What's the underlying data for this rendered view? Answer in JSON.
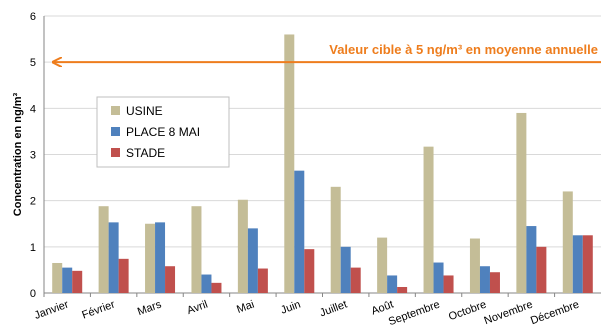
{
  "chart_data": {
    "type": "bar",
    "title": "",
    "xlabel": "",
    "ylabel": "Concentration en ng/m³",
    "ylim": [
      0,
      6
    ],
    "yticks": [
      "0",
      "1",
      "2",
      "3",
      "4",
      "5",
      "6"
    ],
    "grid": true,
    "legend_position": "left",
    "categories": [
      "Janvier",
      "Février",
      "Mars",
      "Avril",
      "Mai",
      "Juin",
      "Juillet",
      "Août",
      "Septembre",
      "Octobre",
      "Novembre",
      "Décembre"
    ],
    "series": [
      {
        "name": "USINE",
        "color": "#c4bd97",
        "values": [
          0.65,
          1.88,
          1.5,
          1.88,
          2.02,
          5.6,
          2.3,
          1.2,
          3.17,
          1.18,
          3.9,
          2.2
        ]
      },
      {
        "name": "PLACE 8 MAI",
        "color": "#4f81bd",
        "values": [
          0.55,
          1.53,
          1.53,
          0.4,
          1.4,
          2.65,
          1.0,
          0.38,
          0.66,
          0.58,
          1.45,
          1.25
        ]
      },
      {
        "name": "STADE",
        "color": "#c0504d",
        "values": [
          0.48,
          0.74,
          0.58,
          0.22,
          0.53,
          0.95,
          0.55,
          0.13,
          0.38,
          0.45,
          1.0,
          1.25
        ]
      }
    ],
    "annotation": {
      "text": "Valeur cible à 5 ng/m³ en moyenne annuelle",
      "value": 5,
      "color": "#ee7d1d"
    }
  }
}
